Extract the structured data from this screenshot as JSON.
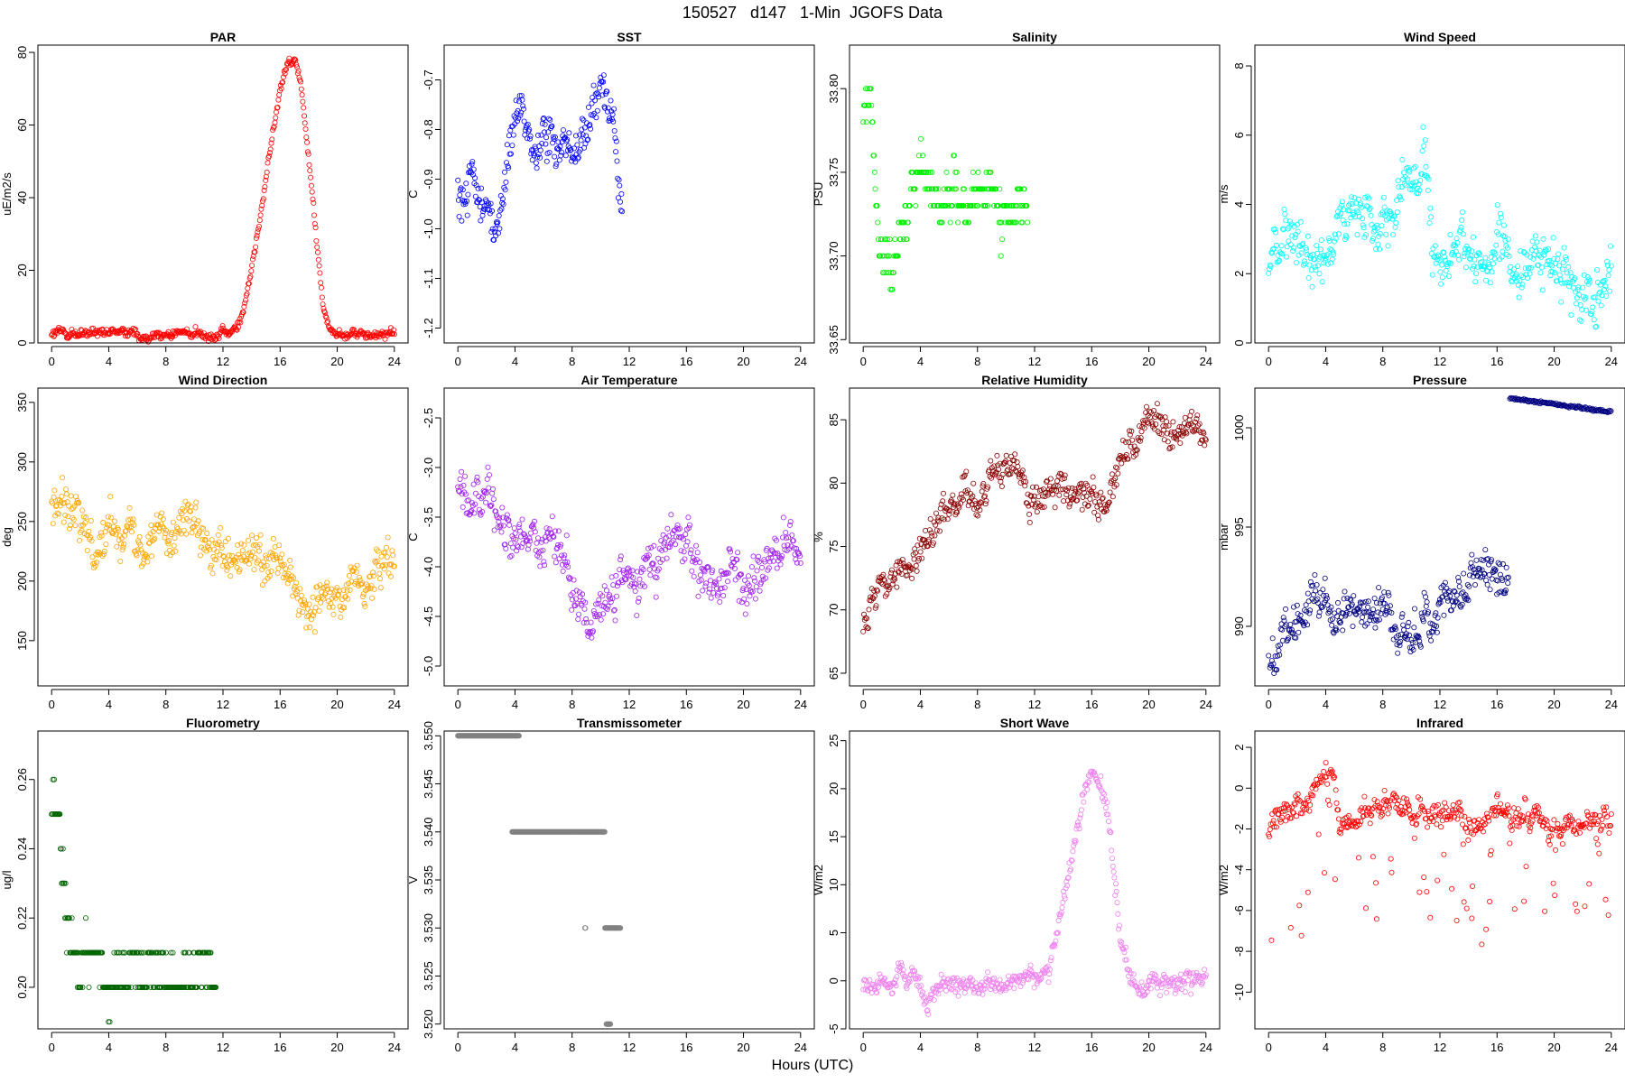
{
  "page": {
    "title": "150527   d147   1-Min  JGOFS Data",
    "xlabel": "Hours (UTC)"
  },
  "chart_data": [
    {
      "type": "scatter",
      "title": "PAR",
      "ylabel": "uE/m2/s",
      "color": "#ff0000",
      "xlim": [
        0,
        24
      ],
      "ylim": [
        0,
        82
      ],
      "xticks": [
        0,
        4,
        8,
        12,
        16,
        20,
        24
      ],
      "yticks": [
        0,
        20,
        40,
        60,
        80
      ],
      "ytick_labels": [
        "0",
        "20",
        "40",
        "60",
        "80"
      ],
      "anchors": [
        [
          0,
          2.5
        ],
        [
          12.5,
          2.5
        ],
        [
          13,
          4
        ],
        [
          13.5,
          10
        ],
        [
          14,
          20
        ],
        [
          14.5,
          32
        ],
        [
          15,
          45
        ],
        [
          15.5,
          58
        ],
        [
          16,
          70
        ],
        [
          16.5,
          77
        ],
        [
          17,
          79
        ],
        [
          17.5,
          70
        ],
        [
          18,
          50
        ],
        [
          18.5,
          30
        ],
        [
          19,
          10
        ],
        [
          19.5,
          3
        ],
        [
          20,
          2.5
        ],
        [
          24,
          2.5
        ]
      ],
      "noise": 1.2,
      "x_end": 24
    },
    {
      "type": "scatter",
      "title": "SST",
      "ylabel": "C",
      "color": "#0000ff",
      "xlim": [
        0,
        24
      ],
      "ylim": [
        -1.23,
        -0.63
      ],
      "xticks": [
        0,
        4,
        8,
        12,
        16,
        20,
        24
      ],
      "yticks": [
        -1.2,
        -1.1,
        -1.0,
        -0.9,
        -0.8,
        -0.7
      ],
      "ytick_labels": [
        "-1.2",
        "-1.1",
        "-1.0",
        "-0.9",
        "-0.8",
        "-0.7"
      ],
      "anchors": [
        [
          0,
          -0.92
        ],
        [
          0.5,
          -0.95
        ],
        [
          1,
          -0.88
        ],
        [
          1.5,
          -0.97
        ],
        [
          2,
          -0.93
        ],
        [
          2.5,
          -1.0
        ],
        [
          3,
          -0.98
        ],
        [
          3.5,
          -0.85
        ],
        [
          4,
          -0.78
        ],
        [
          4.5,
          -0.76
        ],
        [
          5,
          -0.82
        ],
        [
          5.5,
          -0.85
        ],
        [
          6,
          -0.78
        ],
        [
          6.5,
          -0.8
        ],
        [
          7,
          -0.83
        ],
        [
          7.5,
          -0.82
        ],
        [
          8,
          -0.86
        ],
        [
          8.5,
          -0.84
        ],
        [
          9,
          -0.78
        ],
        [
          9.5,
          -0.72
        ],
        [
          10,
          -0.74
        ],
        [
          10.5,
          -0.77
        ],
        [
          11,
          -0.82
        ],
        [
          11.4,
          -0.95
        ]
      ],
      "noise": 0.04,
      "x_end": 11.5
    },
    {
      "type": "scatter",
      "title": "Salinity",
      "ylabel": "PSU",
      "color": "#00ee00",
      "xlim": [
        0,
        24
      ],
      "ylim": [
        33.648,
        33.826
      ],
      "xticks": [
        0,
        4,
        8,
        12,
        16,
        20,
        24
      ],
      "yticks": [
        33.65,
        33.7,
        33.75,
        33.8
      ],
      "ytick_labels": [
        "33.65",
        "33.70",
        "33.75",
        "33.80"
      ],
      "anchors": [
        [
          0,
          33.79
        ],
        [
          0.5,
          33.8
        ],
        [
          1,
          33.72
        ],
        [
          1.5,
          33.7
        ],
        [
          2,
          33.69
        ],
        [
          2.5,
          33.71
        ],
        [
          3,
          33.72
        ],
        [
          3.5,
          33.74
        ],
        [
          4,
          33.76
        ],
        [
          4.5,
          33.75
        ],
        [
          5,
          33.74
        ],
        [
          5.5,
          33.73
        ],
        [
          6,
          33.74
        ],
        [
          6.5,
          33.75
        ],
        [
          7,
          33.73
        ],
        [
          8,
          33.73
        ],
        [
          9,
          33.74
        ],
        [
          10,
          33.72
        ],
        [
          11,
          33.73
        ],
        [
          11.4,
          33.72
        ]
      ],
      "noise": 0.012,
      "quant": 0.01,
      "x_end": 11.5
    },
    {
      "type": "scatter",
      "title": "Wind Speed",
      "ylabel": "m/s",
      "color": "#00ffff",
      "xlim": [
        0,
        24
      ],
      "ylim": [
        0,
        8.6
      ],
      "xticks": [
        0,
        4,
        8,
        12,
        16,
        20,
        24
      ],
      "yticks": [
        0,
        2,
        4,
        6,
        8
      ],
      "ytick_labels": [
        "0",
        "2",
        "4",
        "6",
        "8"
      ],
      "anchors": [
        [
          0,
          2.5
        ],
        [
          1,
          3
        ],
        [
          2,
          2.6
        ],
        [
          3,
          2.3
        ],
        [
          4,
          2.8
        ],
        [
          5,
          3.2
        ],
        [
          6,
          3.6
        ],
        [
          7,
          3.8
        ],
        [
          8,
          3.9
        ],
        [
          9,
          4.1
        ],
        [
          10,
          4.6
        ],
        [
          11,
          5.5
        ],
        [
          11.5,
          3.2
        ],
        [
          12,
          2.0
        ],
        [
          13,
          2.2
        ],
        [
          14,
          2.5
        ],
        [
          15,
          2.4
        ],
        [
          16,
          2.7
        ],
        [
          17,
          2.3
        ],
        [
          18,
          2.1
        ],
        [
          19,
          2.3
        ],
        [
          20,
          2.2
        ],
        [
          21,
          2.0
        ],
        [
          22,
          1.6
        ],
        [
          23,
          1.8
        ],
        [
          24,
          2.5
        ]
      ],
      "noise": 0.7,
      "x_end": 24
    },
    {
      "type": "scatter",
      "title": "Wind Direction",
      "ylabel": "deg",
      "color": "#ffa500",
      "xlim": [
        0,
        24
      ],
      "ylim": [
        112,
        362
      ],
      "xticks": [
        0,
        4,
        8,
        12,
        16,
        20,
        24
      ],
      "yticks": [
        150,
        200,
        250,
        300,
        350
      ],
      "ytick_labels": [
        "150",
        "200",
        "250",
        "300",
        "350"
      ],
      "anchors": [
        [
          0,
          250
        ],
        [
          1,
          270
        ],
        [
          2,
          245
        ],
        [
          3,
          235
        ],
        [
          4,
          245
        ],
        [
          5,
          255
        ],
        [
          6,
          235
        ],
        [
          7,
          240
        ],
        [
          8,
          240
        ],
        [
          9,
          260
        ],
        [
          10,
          245
        ],
        [
          11,
          225
        ],
        [
          12,
          215
        ],
        [
          13,
          210
        ],
        [
          14,
          220
        ],
        [
          15,
          215
        ],
        [
          16,
          215
        ],
        [
          17,
          205
        ],
        [
          18,
          175
        ],
        [
          19,
          195
        ],
        [
          20,
          185
        ],
        [
          21,
          200
        ],
        [
          22,
          200
        ],
        [
          23,
          215
        ],
        [
          24,
          230
        ]
      ],
      "noise": 18,
      "x_end": 24
    },
    {
      "type": "scatter",
      "title": "Air Temperature",
      "ylabel": "C",
      "color": "#a020f0",
      "xlim": [
        0,
        24
      ],
      "ylim": [
        -5.2,
        -2.2
      ],
      "xticks": [
        0,
        4,
        8,
        12,
        16,
        20,
        24
      ],
      "yticks": [
        -5.0,
        -4.5,
        -4.0,
        -3.5,
        -3.0,
        -2.5
      ],
      "ytick_labels": [
        "-5.0",
        "-4.5",
        "-4.0",
        "-3.5",
        "-3.0",
        "-2.5"
      ],
      "anchors": [
        [
          0,
          -3.2
        ],
        [
          1,
          -3.4
        ],
        [
          2,
          -3.1
        ],
        [
          3,
          -3.5
        ],
        [
          4,
          -3.8
        ],
        [
          5,
          -3.6
        ],
        [
          6,
          -3.9
        ],
        [
          7,
          -3.7
        ],
        [
          8,
          -4.1
        ],
        [
          9,
          -4.5
        ],
        [
          9.5,
          -4.8
        ],
        [
          10,
          -4.4
        ],
        [
          11,
          -4.3
        ],
        [
          12,
          -4.1
        ],
        [
          13,
          -3.9
        ],
        [
          14,
          -3.8
        ],
        [
          15,
          -3.7
        ],
        [
          16,
          -3.7
        ],
        [
          17,
          -4.0
        ],
        [
          18,
          -4.2
        ],
        [
          19,
          -4.0
        ],
        [
          20,
          -4.2
        ],
        [
          21,
          -4.1
        ],
        [
          22,
          -3.8
        ],
        [
          23,
          -3.7
        ],
        [
          24,
          -3.8
        ]
      ],
      "noise": 0.22,
      "x_end": 24
    },
    {
      "type": "scatter",
      "title": "Relative Humidity",
      "ylabel": "%",
      "color": "#8b0000",
      "xlim": [
        0,
        24
      ],
      "ylim": [
        64,
        87.5
      ],
      "xticks": [
        0,
        4,
        8,
        12,
        16,
        20,
        24
      ],
      "yticks": [
        65,
        70,
        75,
        80,
        85
      ],
      "ytick_labels": [
        "65",
        "70",
        "75",
        "80",
        "85"
      ],
      "anchors": [
        [
          0,
          69
        ],
        [
          1,
          71
        ],
        [
          2,
          72
        ],
        [
          3,
          73
        ],
        [
          4,
          75
        ],
        [
          5,
          77
        ],
        [
          6,
          78
        ],
        [
          7,
          79
        ],
        [
          8,
          78
        ],
        [
          9,
          81
        ],
        [
          10,
          82
        ],
        [
          11,
          81
        ],
        [
          12,
          78
        ],
        [
          13,
          80
        ],
        [
          14,
          80
        ],
        [
          15,
          79
        ],
        [
          16,
          80
        ],
        [
          17,
          78
        ],
        [
          18,
          82
        ],
        [
          19,
          83
        ],
        [
          20,
          85
        ],
        [
          21,
          84
        ],
        [
          22,
          84
        ],
        [
          23,
          84
        ],
        [
          24,
          83
        ]
      ],
      "noise": 1.2,
      "x_end": 24
    },
    {
      "type": "scatter",
      "title": "Pressure",
      "ylabel": "mbar",
      "color": "#000080",
      "xlim": [
        0,
        24
      ],
      "ylim": [
        987,
        1002
      ],
      "xticks": [
        0,
        4,
        8,
        12,
        16,
        20,
        24
      ],
      "yticks": [
        990,
        995,
        1000
      ],
      "ytick_labels": [
        "990",
        "995",
        "1000"
      ],
      "anchors": [
        [
          0,
          988
        ],
        [
          1,
          989.5
        ],
        [
          2,
          990.5
        ],
        [
          3,
          991.5
        ],
        [
          4,
          992
        ],
        [
          4.5,
          989.5
        ],
        [
          5,
          990
        ],
        [
          6,
          991
        ],
        [
          7,
          990.5
        ],
        [
          8,
          991
        ],
        [
          9,
          990
        ],
        [
          10,
          989
        ],
        [
          11,
          990
        ],
        [
          12,
          991
        ],
        [
          13,
          991.5
        ],
        [
          14,
          992
        ],
        [
          15,
          993
        ],
        [
          16,
          992.5
        ],
        [
          16.8,
          992.5
        ]
      ],
      "noise": 1.0,
      "x_end": 16.8,
      "extra": {
        "x0": 16.9,
        "x1": 24,
        "y0": 1001.5,
        "y1": 1000.8,
        "noise": 0.12
      }
    },
    {
      "type": "scatter",
      "title": "Fluorometry",
      "ylabel": "ug/l",
      "color": "#006400",
      "xlim": [
        0,
        24
      ],
      "ylim": [
        0.188,
        0.274
      ],
      "xticks": [
        0,
        4,
        8,
        12,
        16,
        20,
        24
      ],
      "yticks": [
        0.2,
        0.22,
        0.24,
        0.26
      ],
      "ytick_labels": [
        "0.20",
        "0.22",
        "0.24",
        "0.26"
      ],
      "anchors": [
        [
          0,
          0.25
        ],
        [
          0.5,
          0.25
        ],
        [
          1,
          0.22
        ],
        [
          2,
          0.21
        ],
        [
          3,
          0.21
        ],
        [
          4,
          0.2
        ],
        [
          5,
          0.205
        ],
        [
          6,
          0.205
        ],
        [
          7,
          0.205
        ],
        [
          8,
          0.205
        ],
        [
          9,
          0.2
        ],
        [
          10,
          0.205
        ],
        [
          11,
          0.205
        ],
        [
          11.4,
          0.2
        ]
      ],
      "noise": 0.006,
      "quant": 0.01,
      "x_end": 11.5
    },
    {
      "type": "scatter",
      "title": "Transmissometer",
      "ylabel": "V",
      "color": "#808080",
      "xlim": [
        0,
        24
      ],
      "ylim": [
        3.5195,
        3.5505
      ],
      "xticks": [
        0,
        4,
        8,
        12,
        16,
        20,
        24
      ],
      "yticks": [
        3.52,
        3.525,
        3.53,
        3.535,
        3.54,
        3.545,
        3.55
      ],
      "ytick_labels": [
        "3.520",
        "3.525",
        "3.530",
        "3.535",
        "3.540",
        "3.545",
        "3.550"
      ],
      "segments": [
        [
          0,
          4.3,
          3.55
        ],
        [
          3.8,
          10.3,
          3.54
        ],
        [
          8.9,
          8.95,
          3.53
        ],
        [
          10.3,
          11.4,
          3.53
        ],
        [
          10.4,
          10.7,
          3.52
        ]
      ]
    },
    {
      "type": "scatter",
      "title": "Short Wave",
      "ylabel": "W/m2",
      "color": "#ee82ee",
      "xlim": [
        0,
        24
      ],
      "ylim": [
        -5,
        26
      ],
      "xticks": [
        0,
        4,
        8,
        12,
        16,
        20,
        24
      ],
      "yticks": [
        -5,
        0,
        5,
        10,
        15,
        20,
        25
      ],
      "ytick_labels": [
        "-5",
        "0",
        "5",
        "10",
        "15",
        "20",
        "25"
      ],
      "anchors": [
        [
          0,
          -0.5
        ],
        [
          2,
          0
        ],
        [
          2.5,
          2
        ],
        [
          3,
          0
        ],
        [
          4,
          -0.5
        ],
        [
          4.5,
          -3
        ],
        [
          5,
          -0.5
        ],
        [
          6,
          0
        ],
        [
          7,
          0
        ],
        [
          8,
          -0.5
        ],
        [
          9,
          -0.5
        ],
        [
          10,
          -0.5
        ],
        [
          11,
          0.5
        ],
        [
          12,
          0.5
        ],
        [
          13,
          1
        ],
        [
          14,
          8
        ],
        [
          15,
          16
        ],
        [
          16,
          22
        ],
        [
          17,
          19
        ],
        [
          17.5,
          12
        ],
        [
          18,
          5
        ],
        [
          18.5,
          1
        ],
        [
          19,
          0
        ],
        [
          20,
          0
        ],
        [
          24,
          0
        ]
      ],
      "noise": 1.0,
      "x_end": 24
    },
    {
      "type": "scatter",
      "title": "Infrared",
      "ylabel": "W/m2",
      "color": "#ff0000",
      "xlim": [
        0,
        24
      ],
      "ylim": [
        -11.8,
        2.8
      ],
      "xticks": [
        0,
        4,
        8,
        12,
        16,
        20,
        24
      ],
      "yticks": [
        -10,
        -8,
        -6,
        -4,
        -2,
        0,
        2
      ],
      "ytick_labels": [
        "-10",
        "-8",
        "-6",
        "-4",
        "-2",
        "0",
        "2"
      ],
      "anchors": [
        [
          0,
          -2
        ],
        [
          1,
          -1.5
        ],
        [
          2,
          -1
        ],
        [
          3,
          -0.5
        ],
        [
          4,
          0.5
        ],
        [
          4.5,
          1
        ],
        [
          5,
          -2
        ],
        [
          6,
          -1
        ],
        [
          7,
          -1.5
        ],
        [
          8,
          -0.5
        ],
        [
          9,
          -0.5
        ],
        [
          10,
          -1
        ],
        [
          11,
          -1.5
        ],
        [
          12,
          -1.5
        ],
        [
          13,
          -1
        ],
        [
          14,
          -2
        ],
        [
          15,
          -1.5
        ],
        [
          16,
          -1
        ],
        [
          17,
          -1.5
        ],
        [
          18,
          -1.5
        ],
        [
          19,
          -1.5
        ],
        [
          20,
          -2
        ],
        [
          21,
          -1.5
        ],
        [
          22,
          -1.5
        ],
        [
          23,
          -1.5
        ],
        [
          24,
          -1.5
        ]
      ],
      "noise": 0.6,
      "outliers": 0.12,
      "outlier_depth": 6,
      "x_end": 24
    }
  ]
}
